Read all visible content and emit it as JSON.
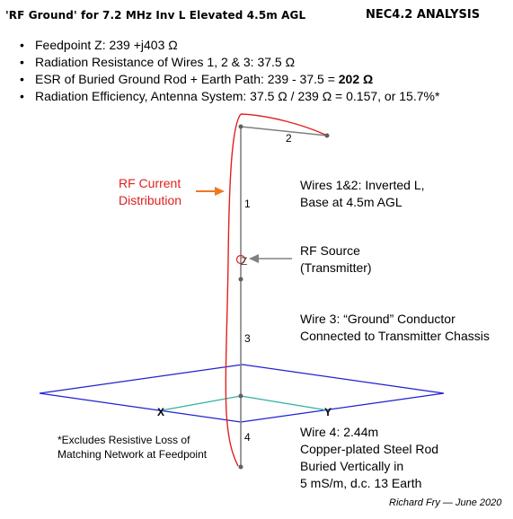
{
  "header": {
    "title": "'RF Ground' for 7.2 MHz Inv L Elevated 4.5m AGL",
    "analysis": "NEC4.2 ANALYSIS"
  },
  "summary": [
    {
      "text": "Feedpoint Z: 239 +j403 Ω"
    },
    {
      "text": "Radiation Resistance of Wires 1, 2 & 3: 37.5 Ω"
    },
    {
      "text": "ESR of Buried Ground Rod + Earth Path: 239 - 37.5 = ",
      "bold": "202 Ω"
    },
    {
      "text": "Radiation Efficiency, Antenna System: 37.5 Ω / 239 Ω = 0.157, or 15.7%*"
    }
  ],
  "labels": {
    "rf_current": [
      "RF Current",
      "Distribution"
    ],
    "wires_1_2": [
      "Wires 1&2: Inverted L,",
      "Base at 4.5m AGL"
    ],
    "rf_source": [
      "RF Source",
      "(Transmitter)"
    ],
    "wire_3": [
      "Wire 3: “Ground” Conductor",
      "Connected to Transmitter Chassis"
    ],
    "wire_4": [
      "Wire 4:    2.44m",
      "Copper-plated Steel Rod",
      "Buried Vertically in",
      "5 mS/m, d.c. 13 Earth"
    ],
    "footnote": [
      "*Excludes Resistive Loss of",
      "Matching Network at Feedpoint"
    ],
    "credit": "Richard Fry — June 2020"
  },
  "diagram_labels": {
    "wire_1": "1",
    "wire_2": "2",
    "wire_3": "3",
    "wire_4": "4",
    "source": "Z",
    "axis_x": "X",
    "axis_y": "Y"
  },
  "colors": {
    "wire": "#808080",
    "current": "#e02020",
    "ground_plane": "#2020d0",
    "ground_diagonal": "#30b0a0",
    "arrow_current": "#f07820",
    "arrow_source": "#808080",
    "label_red": "#e02020"
  }
}
